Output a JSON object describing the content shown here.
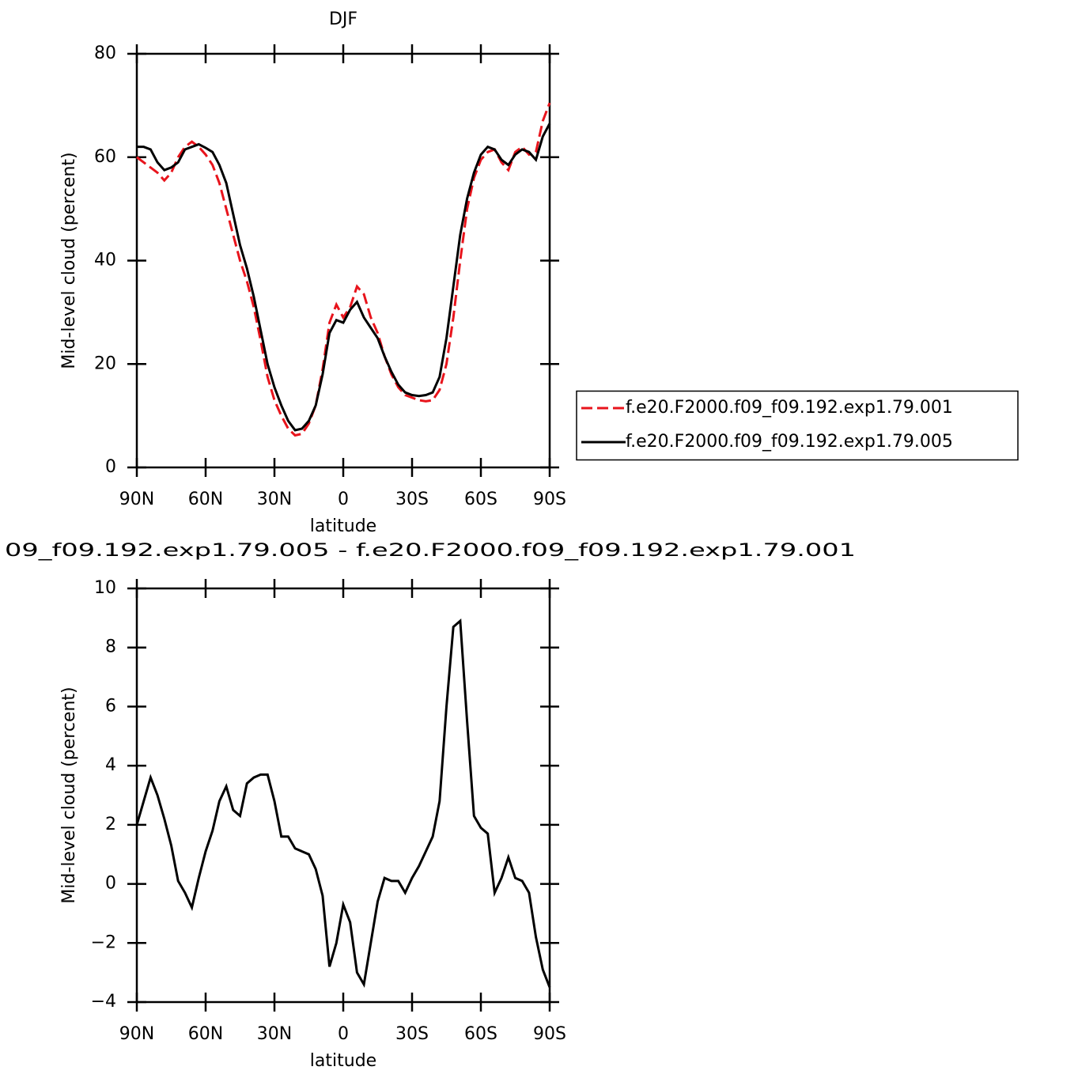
{
  "chart_data": [
    {
      "type": "line",
      "title": "DJF",
      "xlabel": "latitude",
      "ylabel": "Mid-level cloud (percent)",
      "x": [
        90,
        87,
        84,
        81,
        78,
        75,
        72,
        69,
        66,
        63,
        60,
        57,
        54,
        51,
        48,
        45,
        42,
        39,
        36,
        33,
        30,
        27,
        24,
        21,
        18,
        15,
        12,
        9,
        6,
        3,
        0,
        -3,
        -6,
        -9,
        -12,
        -15,
        -18,
        -21,
        -24,
        -27,
        -30,
        -33,
        -36,
        -39,
        -42,
        -45,
        -48,
        -51,
        -54,
        -57,
        -60,
        -63,
        -66,
        -69,
        -72,
        -75,
        -78,
        -81,
        -84,
        -87,
        -90
      ],
      "series": [
        {
          "name": "f.e20.F2000.f09_f09.192.exp1.79.001",
          "color": "#e8141c",
          "line_style": "dashed",
          "values": [
            60,
            59,
            58,
            57,
            55.5,
            57,
            60,
            62,
            63,
            62,
            60.5,
            58.5,
            55,
            50,
            45,
            40,
            36,
            31,
            24.5,
            17.5,
            13,
            10,
            7.5,
            6.2,
            6.5,
            8.5,
            12,
            19,
            28,
            31.5,
            29,
            31,
            35,
            33.5,
            29,
            26,
            21.5,
            18,
            15.5,
            14,
            13.5,
            13,
            12.8,
            13,
            15,
            20,
            29,
            40,
            50,
            56,
            59.5,
            61,
            61.5,
            59,
            57.5,
            61,
            62,
            60.5,
            61,
            67,
            70.5
          ]
        },
        {
          "name": "f.e20.F2000.f09_f09.192.exp1.79.005",
          "color": "#000000",
          "line_style": "solid",
          "values": [
            62,
            62,
            61.5,
            59,
            57.5,
            58,
            59,
            61.5,
            62,
            62.5,
            61.8,
            61,
            58.5,
            55,
            49,
            43,
            38.5,
            33,
            26.5,
            20,
            15.5,
            12,
            9,
            7.2,
            7.5,
            9,
            12,
            18,
            26,
            28.5,
            28,
            30.5,
            32,
            29,
            27,
            25,
            21.5,
            18.5,
            16,
            14.5,
            14,
            13.8,
            14,
            14.5,
            17.5,
            25,
            35,
            45,
            52,
            57,
            60.5,
            62,
            61.5,
            59.5,
            58.5,
            60.5,
            61.5,
            61,
            59.5,
            64,
            66.5
          ]
        }
      ],
      "xlim": [
        90,
        -90
      ],
      "xticks": [
        {
          "value": 90,
          "label": "90N"
        },
        {
          "value": 60,
          "label": "60N"
        },
        {
          "value": 30,
          "label": "30N"
        },
        0,
        {
          "value": -30,
          "label": "30S"
        },
        {
          "value": -60,
          "label": "60S"
        },
        {
          "value": -90,
          "label": "90S"
        }
      ],
      "ylim": [
        0,
        80
      ],
      "yticks": [
        0,
        20,
        40,
        60,
        80
      ],
      "legend": "right"
    },
    {
      "type": "line",
      "title": "09_f09.192.exp1.79.005 - f.e20.F2000.f09_f09.192.exp1.79.001",
      "xlabel": "latitude",
      "ylabel": "Mid-level cloud (percent)",
      "x": [
        90,
        87,
        84,
        81,
        78,
        75,
        72,
        69,
        66,
        63,
        60,
        57,
        54,
        51,
        48,
        45,
        42,
        39,
        36,
        33,
        30,
        27,
        24,
        21,
        18,
        15,
        12,
        9,
        6,
        3,
        0,
        -3,
        -6,
        -9,
        -12,
        -15,
        -18,
        -21,
        -24,
        -27,
        -30,
        -33,
        -36,
        -39,
        -42,
        -45,
        -48,
        -51,
        -54,
        -57,
        -60,
        -63,
        -66,
        -69,
        -72,
        -75,
        -78,
        -81,
        -84,
        -87,
        -90
      ],
      "color": "#000000",
      "values": [
        2.0,
        2.8,
        3.6,
        3.0,
        2.2,
        1.3,
        0.1,
        -0.3,
        -0.8,
        0.2,
        1.1,
        1.8,
        2.8,
        3.3,
        2.5,
        2.3,
        3.4,
        3.6,
        3.7,
        3.7,
        2.8,
        1.6,
        1.6,
        1.2,
        1.1,
        1.0,
        0.5,
        -0.4,
        -2.8,
        -2.0,
        -0.7,
        -1.3,
        -3.0,
        -3.4,
        -2.0,
        -0.6,
        0.2,
        0.1,
        0.1,
        -0.3,
        0.2,
        0.6,
        1.1,
        1.6,
        2.8,
        6.0,
        8.7,
        8.9,
        5.5,
        2.3,
        1.9,
        1.7,
        -0.3,
        0.2,
        0.9,
        0.2,
        0.1,
        -0.3,
        -1.8,
        -2.9,
        -3.5
      ],
      "xlim": [
        90,
        -90
      ],
      "xticks": [
        {
          "value": 90,
          "label": "90N"
        },
        {
          "value": 60,
          "label": "60N"
        },
        {
          "value": 30,
          "label": "30N"
        },
        0,
        {
          "value": -30,
          "label": "30S"
        },
        {
          "value": -60,
          "label": "60S"
        },
        {
          "value": -90,
          "label": "90S"
        }
      ],
      "ylim": [
        -4,
        10
      ],
      "yticks": [
        {
          "value": -4,
          "label": "−4"
        },
        {
          "value": -2,
          "label": "−2"
        },
        0,
        2,
        4,
        6,
        8,
        10
      ]
    }
  ]
}
